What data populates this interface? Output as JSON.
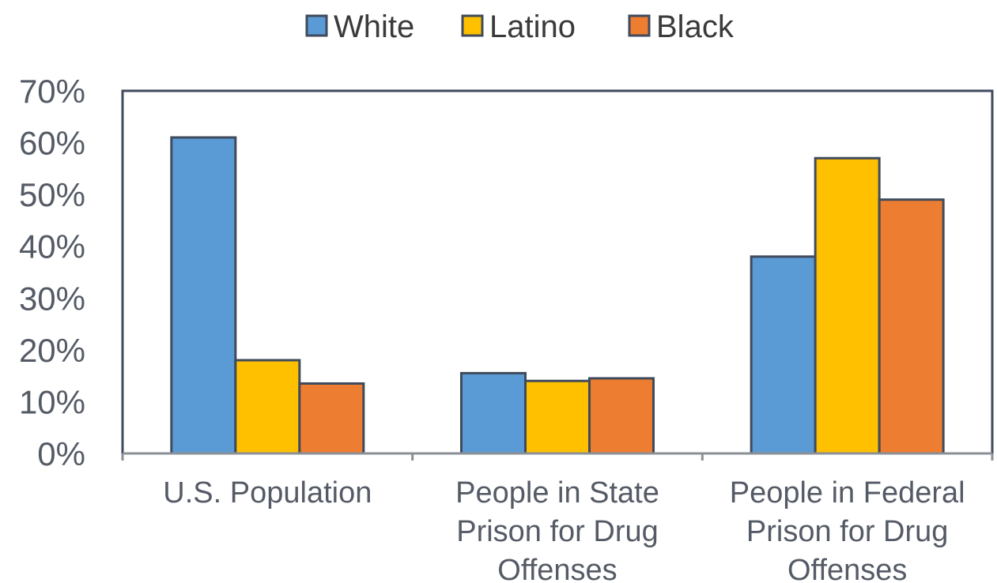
{
  "chart_data": {
    "type": "bar",
    "categories": [
      [
        "U.S. Population"
      ],
      [
        "People in State",
        "Prison for Drug",
        "Offenses"
      ],
      [
        "People in Federal",
        "Prison for Drug",
        "Offenses"
      ]
    ],
    "series": [
      {
        "name": "White",
        "values": [
          61,
          15.5,
          38
        ],
        "color": "#5b9bd5"
      },
      {
        "name": "Latino",
        "values": [
          18,
          14,
          57
        ],
        "color": "#ffc000"
      },
      {
        "name": "Black",
        "values": [
          13.5,
          14.5,
          49
        ],
        "color": "#ed7d31"
      }
    ],
    "ylim": [
      0,
      70
    ],
    "yticks": [
      "0%",
      "10%",
      "20%",
      "30%",
      "40%",
      "50%",
      "60%",
      "70%"
    ],
    "legend_position": "top",
    "grid": false,
    "title": "",
    "xlabel": "",
    "ylabel": ""
  }
}
